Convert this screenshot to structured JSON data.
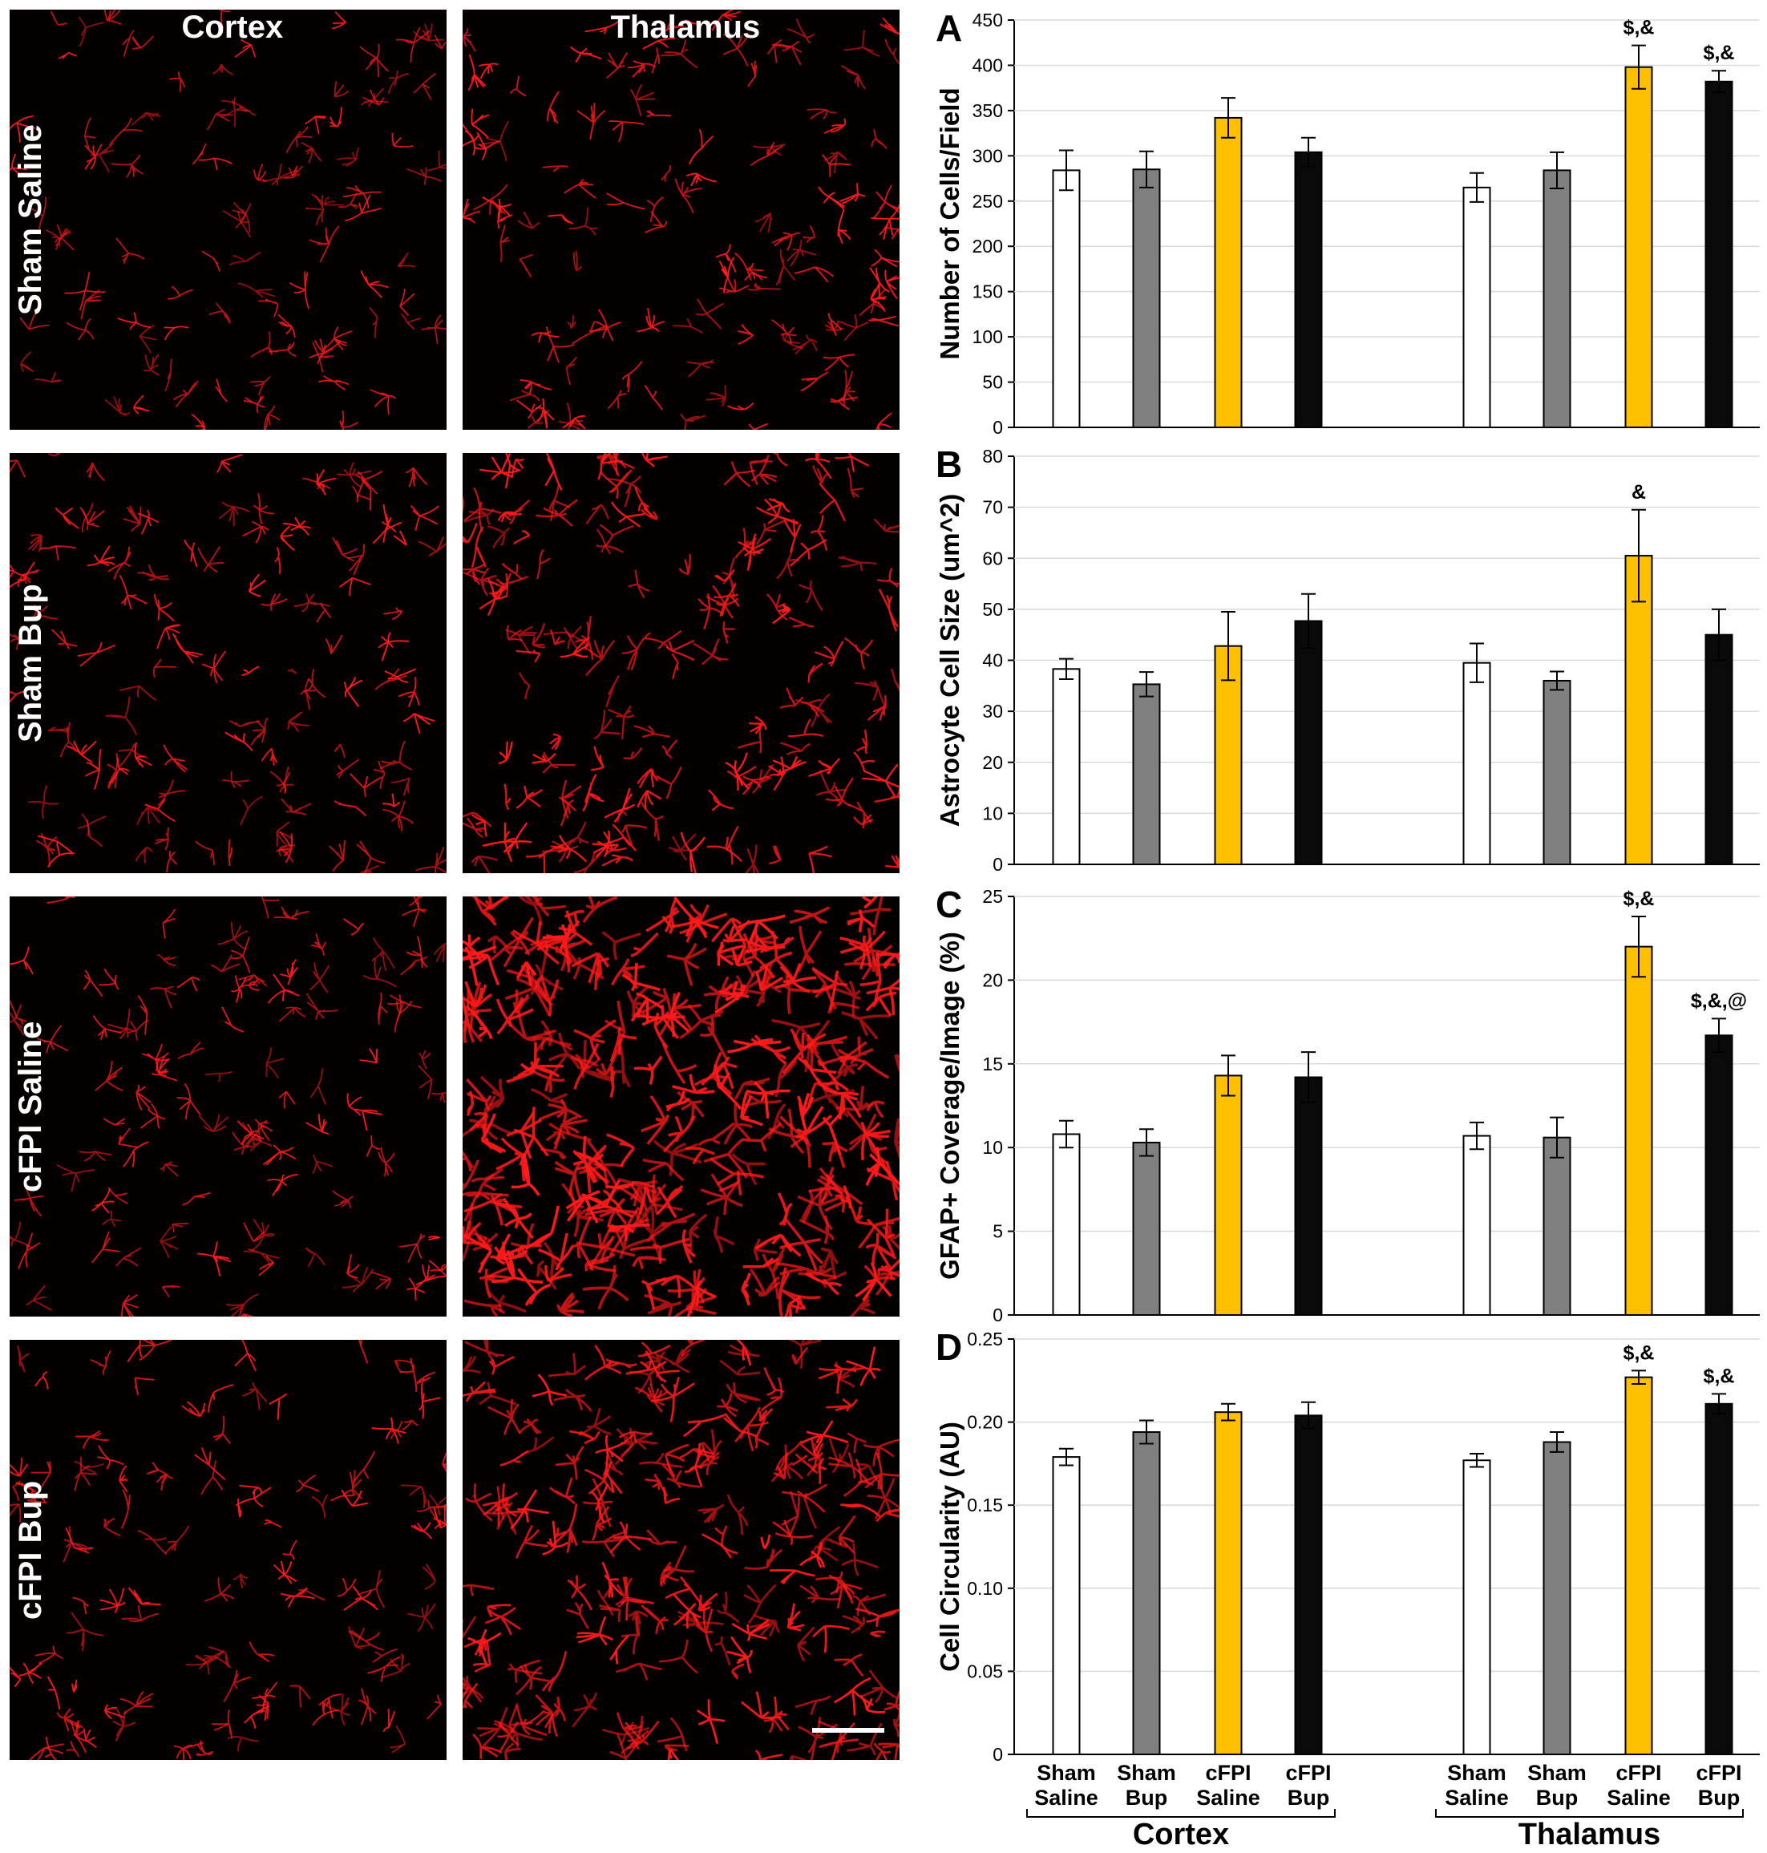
{
  "micrograph": {
    "column_titles": [
      "Cortex",
      "Thalamus"
    ],
    "row_labels": [
      "Sham Saline",
      "Sham Bup",
      "cFPI Saline",
      "cFPI Bup"
    ],
    "stain_color": "#ff1a1a",
    "background_color": "#050000",
    "staining_density": [
      [
        0.22,
        0.3
      ],
      [
        0.3,
        0.46
      ],
      [
        0.26,
        0.95
      ],
      [
        0.28,
        0.62
      ]
    ]
  },
  "colors": {
    "Sham Saline": "#ffffff",
    "Sham Bup": "#808080",
    "cFPI Saline": "#ffc000",
    "cFPI Bup": "#0a0a0a"
  },
  "group_tick_labels": [
    [
      "Sham",
      "Saline"
    ],
    [
      "Sham",
      "Bup"
    ],
    [
      "cFPI",
      "Saline"
    ],
    [
      "cFPI",
      "Bup"
    ]
  ],
  "region_labels": [
    "Cortex",
    "Thalamus"
  ],
  "chart_data": [
    {
      "type": "bar",
      "panel_letter": "A",
      "ylabel": "Number of Cells/Field",
      "ylim": [
        0,
        450
      ],
      "yticks": [
        "0",
        "50",
        "100",
        "150",
        "200",
        "250",
        "300",
        "350",
        "400",
        "450"
      ],
      "groups": [
        "Cortex",
        "Thalamus"
      ],
      "categories": [
        "Sham Saline",
        "Sham Bup",
        "cFPI Saline",
        "cFPI Bup"
      ],
      "values": [
        [
          284,
          285,
          342,
          304
        ],
        [
          265,
          284,
          398,
          382
        ]
      ],
      "errors": [
        [
          22,
          20,
          22,
          16
        ],
        [
          16,
          20,
          24,
          12
        ]
      ],
      "annotations": [
        [
          "",
          "",
          "",
          ""
        ],
        [
          "",
          "",
          "$,&",
          "$,&"
        ]
      ]
    },
    {
      "type": "bar",
      "panel_letter": "B",
      "ylabel": "Astrocyte Cell Size (um^2)",
      "ylim": [
        0,
        80
      ],
      "yticks": [
        "0",
        "10",
        "20",
        "30",
        "40",
        "50",
        "60",
        "70",
        "80"
      ],
      "groups": [
        "Cortex",
        "Thalamus"
      ],
      "categories": [
        "Sham Saline",
        "Sham Bup",
        "cFPI Saline",
        "cFPI Bup"
      ],
      "values": [
        [
          38.3,
          35.3,
          42.8,
          47.7
        ],
        [
          39.5,
          36.0,
          60.5,
          45.0
        ]
      ],
      "errors": [
        [
          2.0,
          2.4,
          6.7,
          5.3
        ],
        [
          3.8,
          1.8,
          9.0,
          5.0
        ]
      ],
      "annotations": [
        [
          "",
          "",
          "",
          ""
        ],
        [
          "",
          "",
          "&",
          ""
        ]
      ]
    },
    {
      "type": "bar",
      "panel_letter": "C",
      "ylabel": "GFAP+ Coverage/Image (%)",
      "ylim": [
        0,
        25
      ],
      "yticks": [
        "0",
        "5",
        "10",
        "15",
        "20",
        "25"
      ],
      "groups": [
        "Cortex",
        "Thalamus"
      ],
      "categories": [
        "Sham Saline",
        "Sham Bup",
        "cFPI Saline",
        "cFPI Bup"
      ],
      "values": [
        [
          10.8,
          10.3,
          14.3,
          14.2
        ],
        [
          10.7,
          10.6,
          22.0,
          16.7
        ]
      ],
      "errors": [
        [
          0.8,
          0.8,
          1.2,
          1.5
        ],
        [
          0.8,
          1.2,
          1.8,
          1.0
        ]
      ],
      "annotations": [
        [
          "",
          "",
          "",
          ""
        ],
        [
          "",
          "",
          "$,&",
          "$,&,@"
        ]
      ]
    },
    {
      "type": "bar",
      "panel_letter": "D",
      "ylabel": "Cell Circularity (AU)",
      "ylim": [
        0,
        0.25
      ],
      "yticks": [
        "0",
        "0.05",
        "0.10",
        "0.15",
        "0.20",
        "0.25"
      ],
      "groups": [
        "Cortex",
        "Thalamus"
      ],
      "categories": [
        "Sham Saline",
        "Sham Bup",
        "cFPI Saline",
        "cFPI Bup"
      ],
      "values": [
        [
          0.179,
          0.194,
          0.206,
          0.204
        ],
        [
          0.177,
          0.188,
          0.227,
          0.211
        ]
      ],
      "errors": [
        [
          0.005,
          0.007,
          0.005,
          0.008
        ],
        [
          0.004,
          0.006,
          0.004,
          0.006
        ]
      ],
      "annotations": [
        [
          "",
          "",
          "",
          ""
        ],
        [
          "",
          "",
          "$,&",
          "$,&"
        ]
      ]
    }
  ]
}
